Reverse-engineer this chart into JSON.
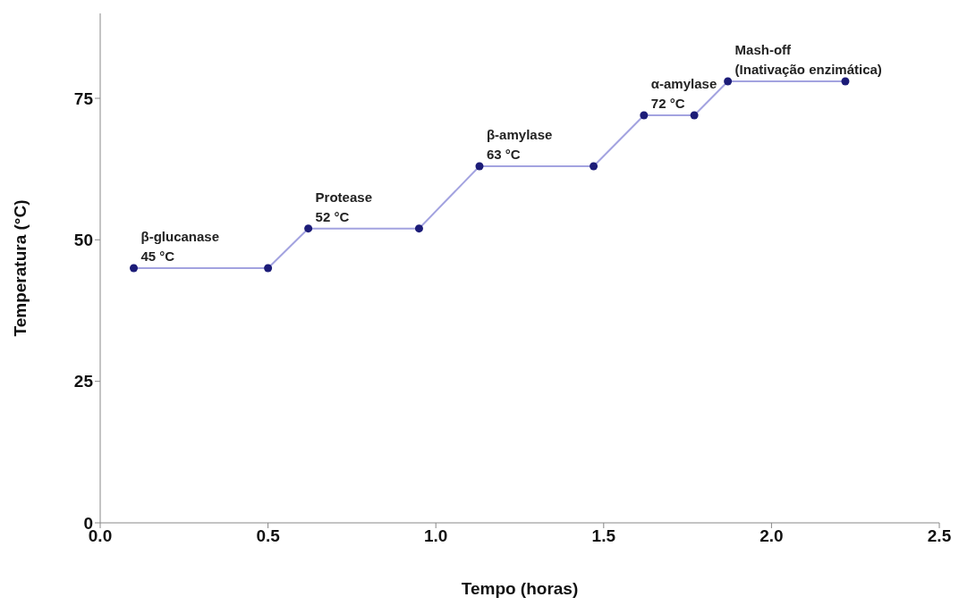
{
  "chart_data": {
    "type": "line",
    "xlabel": "Tempo (horas)",
    "ylabel": "Temperatura (°C)",
    "x": [
      0.1,
      0.5,
      0.62,
      0.95,
      1.13,
      1.47,
      1.62,
      1.77,
      1.87,
      2.22
    ],
    "series": [
      {
        "color": "#a3a3e0",
        "values": [
          45,
          45,
          52,
          52,
          63,
          63,
          72,
          72,
          78,
          78
        ]
      }
    ],
    "xlim": [
      0,
      2.5
    ],
    "xticks": [
      {
        "value": 0,
        "label": "0.0"
      },
      0.5,
      {
        "value": 1,
        "label": "1.0"
      },
      1.5,
      {
        "value": 2,
        "label": "2.0"
      },
      2.5
    ],
    "ylim": [
      0,
      90
    ],
    "yticks": [
      0,
      25,
      50,
      75
    ],
    "grid": false,
    "legend": false,
    "marker": "circle",
    "line_style": "solid",
    "annotations": [
      {
        "text": "β-glucanase\n45 °C",
        "x": 0.1,
        "y": 45
      },
      {
        "text": "Protease\n52 °C",
        "x": 0.62,
        "y": 52
      },
      {
        "text": "β-amylase\n63 °C",
        "x": 1.13,
        "y": 63
      },
      {
        "text": "α-amylase\n72 °C",
        "x": 1.62,
        "y": 72
      },
      {
        "text": "Mash-off\n(Inativação enzimática)",
        "x": 1.87,
        "y": 78
      }
    ]
  }
}
